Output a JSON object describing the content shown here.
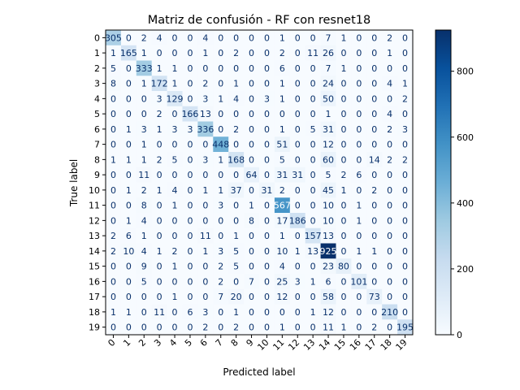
{
  "chart_data": {
    "type": "heatmap",
    "title": "Matriz de confusión - RF con resnet18",
    "xlabel": "Predicted label",
    "ylabel": "True label",
    "x_tick_labels": [
      "0",
      "1",
      "2",
      "3",
      "4",
      "5",
      "6",
      "7",
      "8",
      "9",
      "10",
      "11",
      "12",
      "13",
      "14",
      "15",
      "16",
      "17",
      "18",
      "19"
    ],
    "y_tick_labels": [
      "0",
      "1",
      "2",
      "3",
      "4",
      "5",
      "6",
      "7",
      "8",
      "9",
      "10",
      "11",
      "12",
      "13",
      "14",
      "15",
      "16",
      "17",
      "18",
      "19"
    ],
    "matrix": [
      [
        305,
        0,
        2,
        4,
        0,
        0,
        4,
        0,
        0,
        0,
        0,
        1,
        0,
        0,
        7,
        1,
        0,
        0,
        2,
        0
      ],
      [
        1,
        165,
        1,
        0,
        0,
        0,
        1,
        0,
        2,
        0,
        0,
        2,
        0,
        11,
        26,
        0,
        0,
        0,
        1,
        0
      ],
      [
        5,
        0,
        333,
        1,
        1,
        0,
        0,
        0,
        0,
        0,
        0,
        6,
        0,
        0,
        7,
        1,
        0,
        0,
        0,
        0
      ],
      [
        8,
        0,
        1,
        172,
        1,
        0,
        2,
        0,
        1,
        0,
        0,
        1,
        0,
        0,
        24,
        0,
        0,
        0,
        4,
        1
      ],
      [
        0,
        0,
        0,
        3,
        129,
        0,
        3,
        1,
        4,
        0,
        3,
        1,
        0,
        0,
        50,
        0,
        0,
        0,
        0,
        2
      ],
      [
        0,
        0,
        0,
        2,
        0,
        166,
        13,
        0,
        0,
        0,
        0,
        0,
        0,
        0,
        1,
        0,
        0,
        0,
        4,
        0
      ],
      [
        0,
        1,
        3,
        1,
        3,
        3,
        336,
        0,
        2,
        0,
        0,
        1,
        0,
        5,
        31,
        0,
        0,
        0,
        2,
        3
      ],
      [
        0,
        0,
        1,
        0,
        0,
        0,
        0,
        448,
        0,
        0,
        0,
        51,
        0,
        0,
        12,
        0,
        0,
        0,
        0,
        0
      ],
      [
        1,
        1,
        1,
        2,
        5,
        0,
        3,
        1,
        168,
        0,
        0,
        5,
        0,
        0,
        60,
        0,
        0,
        14,
        2,
        2
      ],
      [
        0,
        0,
        11,
        0,
        0,
        0,
        0,
        0,
        0,
        64,
        0,
        31,
        31,
        0,
        5,
        2,
        6,
        0,
        0,
        0
      ],
      [
        0,
        1,
        2,
        1,
        4,
        0,
        1,
        1,
        37,
        0,
        31,
        2,
        0,
        0,
        45,
        1,
        0,
        2,
        0,
        0
      ],
      [
        0,
        0,
        8,
        0,
        1,
        0,
        0,
        3,
        0,
        1,
        0,
        567,
        0,
        0,
        10,
        0,
        1,
        0,
        0,
        0
      ],
      [
        0,
        1,
        4,
        0,
        0,
        0,
        0,
        0,
        0,
        8,
        0,
        17,
        186,
        0,
        10,
        0,
        1,
        0,
        0,
        0
      ],
      [
        2,
        6,
        1,
        0,
        0,
        0,
        11,
        0,
        1,
        0,
        0,
        1,
        0,
        157,
        13,
        0,
        0,
        0,
        0,
        0
      ],
      [
        2,
        10,
        4,
        1,
        2,
        0,
        1,
        3,
        5,
        0,
        0,
        10,
        1,
        13,
        925,
        0,
        1,
        1,
        0,
        0
      ],
      [
        0,
        0,
        9,
        0,
        1,
        0,
        0,
        2,
        5,
        0,
        0,
        4,
        0,
        0,
        23,
        80,
        0,
        0,
        0,
        0
      ],
      [
        0,
        0,
        5,
        0,
        0,
        0,
        0,
        2,
        0,
        7,
        0,
        25,
        3,
        1,
        6,
        0,
        101,
        0,
        0,
        0
      ],
      [
        0,
        0,
        0,
        0,
        1,
        0,
        0,
        7,
        20,
        0,
        0,
        12,
        0,
        0,
        58,
        0,
        0,
        73,
        0,
        0
      ],
      [
        1,
        1,
        0,
        11,
        0,
        6,
        3,
        0,
        1,
        0,
        0,
        0,
        0,
        1,
        12,
        0,
        0,
        0,
        210,
        0
      ],
      [
        0,
        0,
        0,
        0,
        0,
        0,
        2,
        0,
        2,
        0,
        0,
        1,
        0,
        0,
        11,
        1,
        0,
        2,
        0,
        195
      ]
    ],
    "colormap": "Blues",
    "vmin": 0,
    "vmax": 925,
    "colorbar_ticks": [
      0,
      200,
      400,
      600,
      800
    ],
    "text_dark": "#08306b",
    "text_light": "#ffffff"
  }
}
